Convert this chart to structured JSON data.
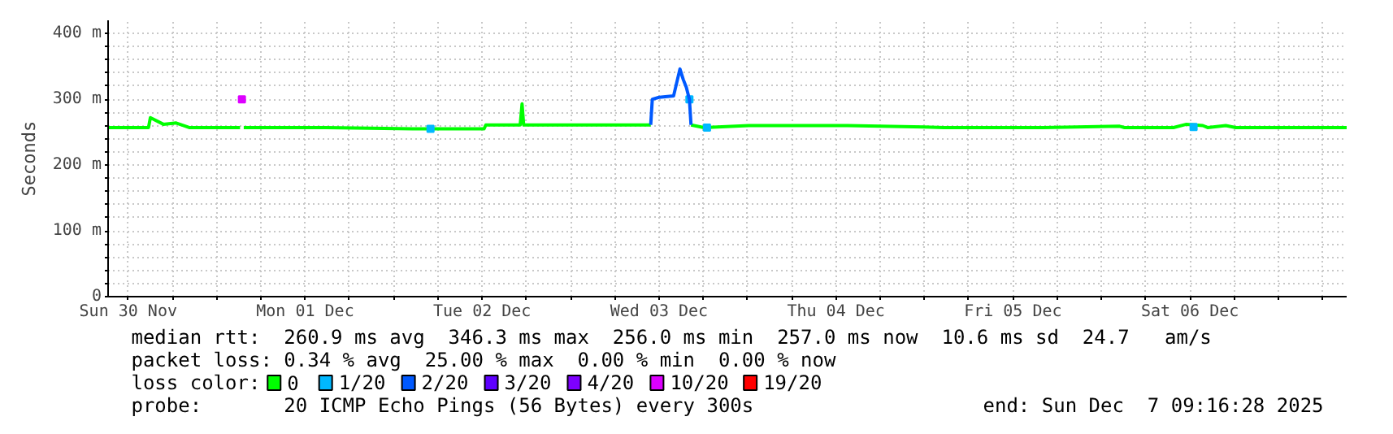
{
  "chart_data": {
    "type": "line",
    "ylabel": "Seconds",
    "xlim": [
      "2025-11-30T09:16",
      "2025-12-07T09:16"
    ],
    "xticks": [
      {
        "value": "2025-11-30T12:00",
        "label": "Sun 30 Nov"
      },
      {
        "value": "2025-11-30T18:00",
        "label": null
      },
      {
        "value": "2025-12-01T00:00",
        "label": null
      },
      {
        "value": "2025-12-01T06:00",
        "label": null
      },
      {
        "value": "2025-12-01T12:00",
        "label": "Mon 01 Dec"
      },
      {
        "value": "2025-12-01T18:00",
        "label": null
      },
      {
        "value": "2025-12-02T00:00",
        "label": null
      },
      {
        "value": "2025-12-02T06:00",
        "label": null
      },
      {
        "value": "2025-12-02T12:00",
        "label": "Tue 02 Dec"
      },
      {
        "value": "2025-12-02T18:00",
        "label": null
      },
      {
        "value": "2025-12-03T00:00",
        "label": null
      },
      {
        "value": "2025-12-03T06:00",
        "label": null
      },
      {
        "value": "2025-12-03T12:00",
        "label": "Wed 03 Dec"
      },
      {
        "value": "2025-12-03T18:00",
        "label": null
      },
      {
        "value": "2025-12-04T00:00",
        "label": null
      },
      {
        "value": "2025-12-04T06:00",
        "label": null
      },
      {
        "value": "2025-12-04T12:00",
        "label": "Thu 04 Dec"
      },
      {
        "value": "2025-12-04T18:00",
        "label": null
      },
      {
        "value": "2025-12-05T00:00",
        "label": null
      },
      {
        "value": "2025-12-05T06:00",
        "label": null
      },
      {
        "value": "2025-12-05T12:00",
        "label": "Fri 05 Dec"
      },
      {
        "value": "2025-12-05T18:00",
        "label": null
      },
      {
        "value": "2025-12-06T00:00",
        "label": null
      },
      {
        "value": "2025-12-06T06:00",
        "label": null
      },
      {
        "value": "2025-12-06T12:00",
        "label": "Sat 06 Dec"
      },
      {
        "value": "2025-12-06T18:00",
        "label": null
      },
      {
        "value": "2025-12-07T00:00",
        "label": null
      },
      {
        "value": "2025-12-07T06:00",
        "label": null
      }
    ],
    "ylim": [
      0,
      420
    ],
    "yticks": [
      0,
      {
        "value": 20,
        "label": null
      },
      {
        "value": 40,
        "label": null
      },
      {
        "value": 60,
        "label": null
      },
      {
        "value": 80,
        "label": null
      },
      {
        "value": 100,
        "label": "100 m"
      },
      {
        "value": 120,
        "label": null
      },
      {
        "value": 140,
        "label": null
      },
      {
        "value": 160,
        "label": null
      },
      {
        "value": 180,
        "label": null
      },
      {
        "value": 200,
        "label": "200 m"
      },
      {
        "value": 220,
        "label": null
      },
      {
        "value": 240,
        "label": null
      },
      {
        "value": 260,
        "label": null
      },
      {
        "value": 280,
        "label": null
      },
      {
        "value": 300,
        "label": "300 m"
      },
      {
        "value": 320,
        "label": null
      },
      {
        "value": 340,
        "label": null
      },
      {
        "value": 360,
        "label": null
      },
      {
        "value": 380,
        "label": null
      },
      {
        "value": 400,
        "label": "400 m"
      }
    ],
    "grid": true,
    "legend": "bottom",
    "legend_title": "loss color:",
    "series": [
      {
        "name": "0",
        "color": "#00ff00",
        "x": [
          "2025-11-30T09:16",
          "2025-11-30T14:45",
          "2025-11-30T15:00",
          "2025-11-30T16:46",
          "2025-11-30T18:30",
          "2025-11-30T20:16",
          "2025-12-01T03:10",
          "2025-12-01T03:25",
          "2025-12-01T03:40",
          "2025-12-01T14:52",
          "2025-12-02T02:34",
          "2025-12-02T12:16",
          "2025-12-02T12:30",
          "2025-12-02T17:10",
          "2025-12-02T17:25",
          "2025-12-02T17:38",
          "2025-12-03T02:16",
          "2025-12-03T10:52",
          "2025-12-03T11:05",
          "2025-12-03T16:20",
          "2025-12-03T18:06",
          "2025-12-04T00:10",
          "2025-12-04T13:34",
          "2025-12-05T00:00",
          "2025-12-05T02:40",
          "2025-12-05T16:05",
          "2025-12-06T02:28",
          "2025-12-06T03:08",
          "2025-12-06T09:46",
          "2025-12-06T11:32",
          "2025-12-06T13:45",
          "2025-12-06T14:24",
          "2025-12-06T16:52",
          "2025-12-06T18:13",
          "2025-12-07T01:17",
          "2025-12-07T09:16"
        ],
        "values": [
          257,
          257,
          272,
          262,
          264,
          257,
          257,
          null,
          257,
          257,
          255,
          255,
          261,
          261,
          293,
          261,
          261,
          261,
          null,
          261,
          257,
          260,
          260,
          258,
          257,
          257,
          259,
          257,
          257,
          262,
          260,
          257,
          260,
          257,
          257,
          257
        ]
      },
      {
        "name": "1/20",
        "color": "#00b8ff",
        "type": "scatter",
        "x": [
          "2025-12-02T05:00",
          "2025-12-03T16:07",
          "2025-12-03T18:30",
          "2025-12-06T12:30"
        ],
        "values": [
          255,
          300,
          257,
          258
        ]
      },
      {
        "name": "2/20",
        "color": "#0059ff",
        "x": [
          "2025-12-03T10:52",
          "2025-12-03T11:05",
          "2025-12-03T12:00",
          "2025-12-03T13:58",
          "2025-12-03T14:50",
          "2025-12-03T15:17",
          "2025-12-03T15:42",
          "2025-12-03T16:07",
          "2025-12-03T16:20"
        ],
        "values": [
          261,
          300,
          303,
          305,
          346,
          330,
          318,
          300,
          261
        ]
      },
      {
        "name": "3/20",
        "color": "#5e00ff",
        "type": "scatter"
      },
      {
        "name": "4/20",
        "color": "#7e00ff",
        "type": "scatter"
      },
      {
        "name": "10/20",
        "color": "#dd00ff",
        "type": "scatter",
        "x": [
          "2025-12-01T03:25"
        ],
        "values": [
          300
        ]
      },
      {
        "name": "19/20",
        "color": "#ff0000",
        "type": "scatter"
      }
    ],
    "annotations": [
      "median rtt:  260.9 ms avg  346.3 ms max  256.0 ms min  257.0 ms now  10.6 ms sd  24.7   am/s",
      "packet loss: 0.34 % avg  25.00 % max  0.00 % min  0.00 % now",
      "probe:       20 ICMP Echo Pings (56 Bytes) every 300s",
      "end: Sun Dec  7 09:16:28 2025"
    ]
  }
}
